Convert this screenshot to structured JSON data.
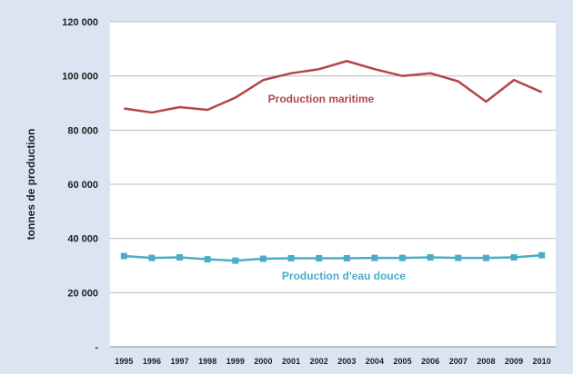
{
  "chart_data": {
    "type": "line",
    "title": "",
    "xlabel": "",
    "ylabel": "tonnes de production",
    "ylim": [
      0,
      120000
    ],
    "y_ticks": [
      0,
      20000,
      40000,
      60000,
      80000,
      100000,
      120000
    ],
    "y_tick_labels": [
      "-",
      "20 000",
      "40 000",
      "60 000",
      "80 000",
      "100 000",
      "120 000"
    ],
    "grid": true,
    "categories": [
      "1995",
      "1996",
      "1997",
      "1998",
      "1999",
      "2000",
      "2001",
      "2002",
      "2003",
      "2004",
      "2005",
      "2006",
      "2007",
      "2008",
      "2009",
      "2010"
    ],
    "series": [
      {
        "name": "Production maritime",
        "color": "#b2464b",
        "markers": false,
        "values": [
          88000,
          86500,
          88500,
          87500,
          92000,
          98500,
          101000,
          102500,
          105500,
          102500,
          100000,
          101000,
          98000,
          90500,
          98500,
          94000
        ]
      },
      {
        "name": "Production d'eau douce",
        "color": "#4bacc6",
        "markers": true,
        "values": [
          33500,
          32800,
          33000,
          32300,
          31800,
          32500,
          32700,
          32700,
          32700,
          32800,
          32800,
          33000,
          32800,
          32800,
          33000,
          33800
        ]
      }
    ]
  }
}
